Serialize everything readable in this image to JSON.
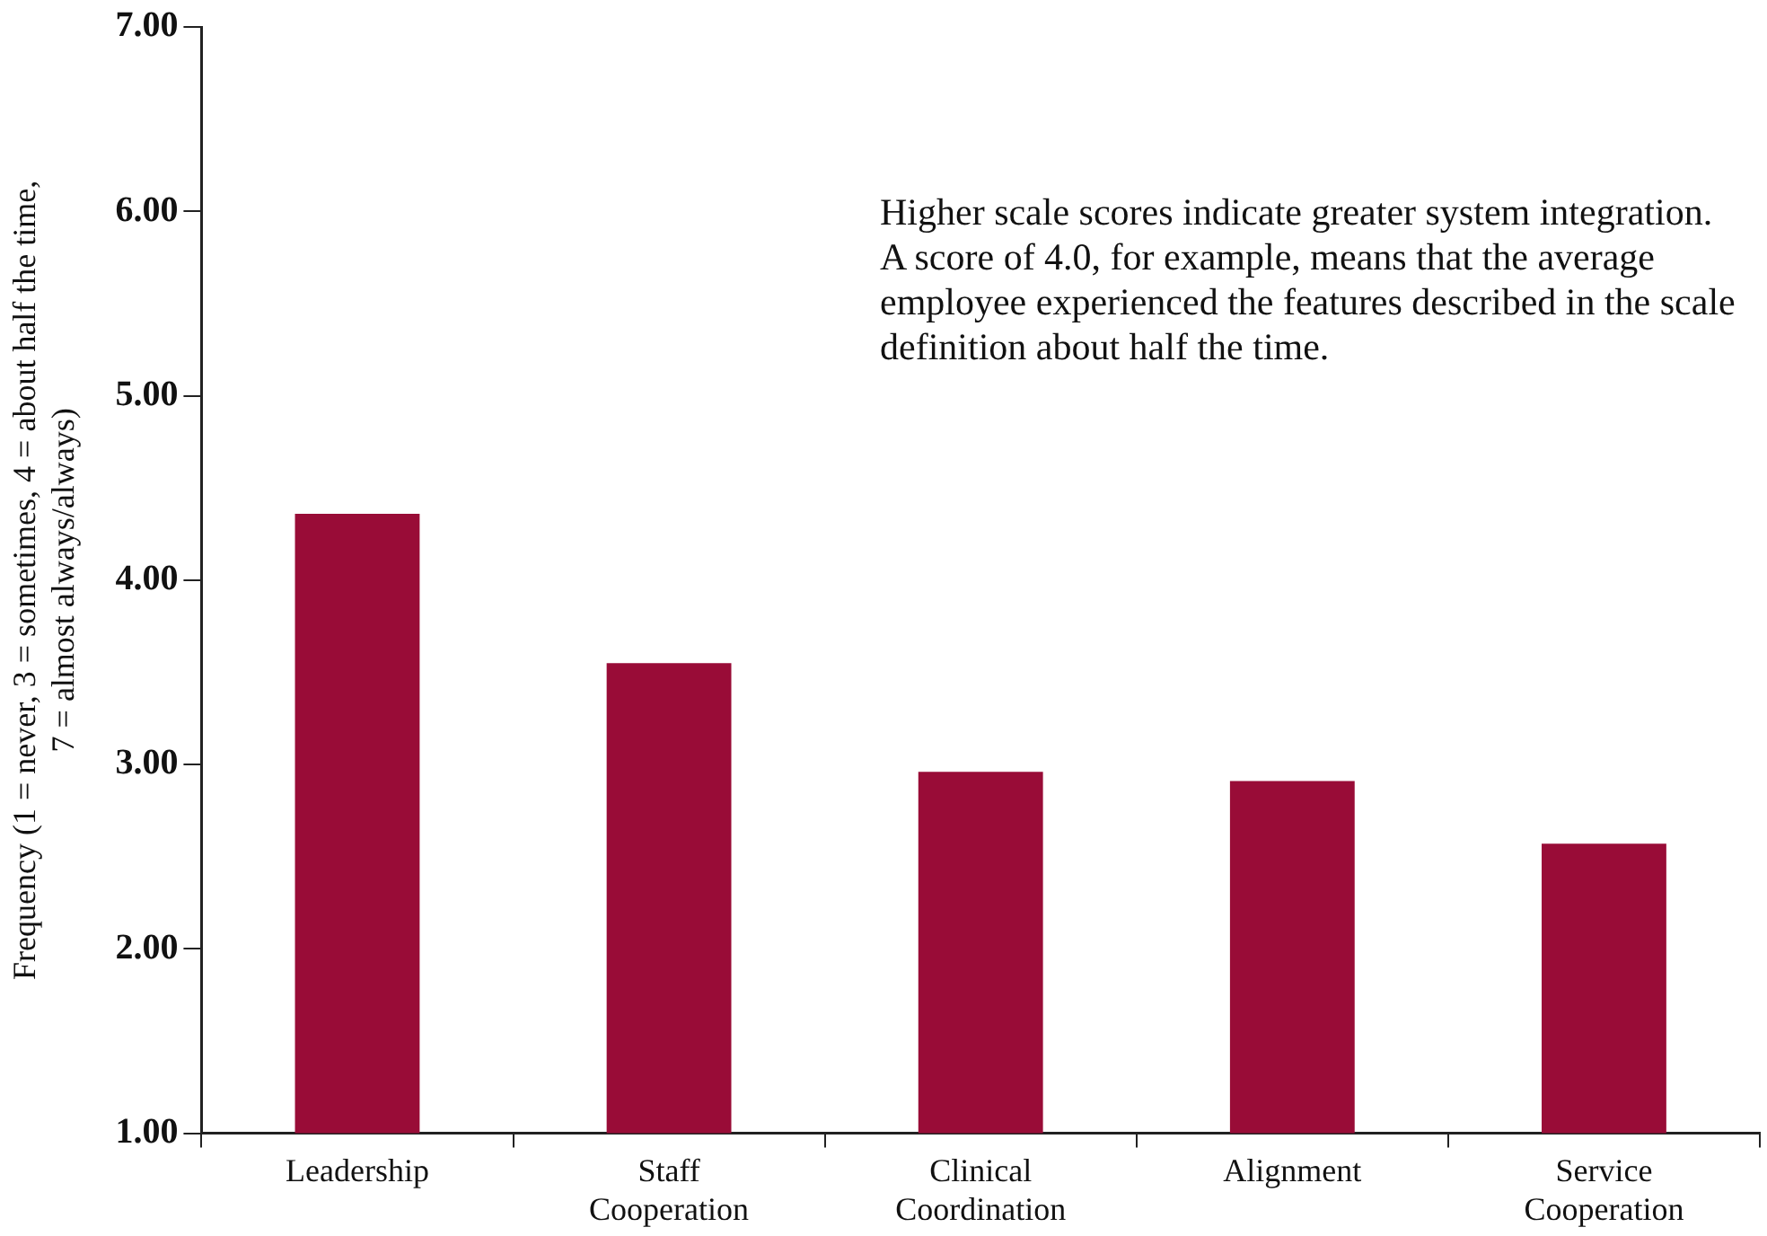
{
  "chart_data": {
    "type": "bar",
    "ylabel": "Frequency (1 = never, 3 = sometimes, 4 = about half the time, 7 = almost always/always)",
    "annotations": [
      "Higher scale scores indicate greater system integration. A score of 4.0, for example, means that the average employee experienced the features described in the scale definition about half the time."
    ],
    "categories": [
      "Leadership",
      "Staff Cooperation",
      "Clinical Coordination",
      "Alignment",
      "Service Cooperation"
    ],
    "values": [
      4.36,
      3.55,
      2.96,
      2.91,
      2.57
    ],
    "color": "#990c37",
    "ylim": [
      1,
      7
    ],
    "yticks": [
      {
        "value": 1,
        "label": "1.00"
      },
      {
        "value": 2,
        "label": "2.00"
      },
      {
        "value": 3,
        "label": "3.00"
      },
      {
        "value": 4,
        "label": "4.00"
      },
      {
        "value": 5,
        "label": "5.00"
      },
      {
        "value": 6,
        "label": "6.00"
      },
      {
        "value": 7,
        "label": "7.00"
      }
    ],
    "grid": false,
    "legend": false
  }
}
